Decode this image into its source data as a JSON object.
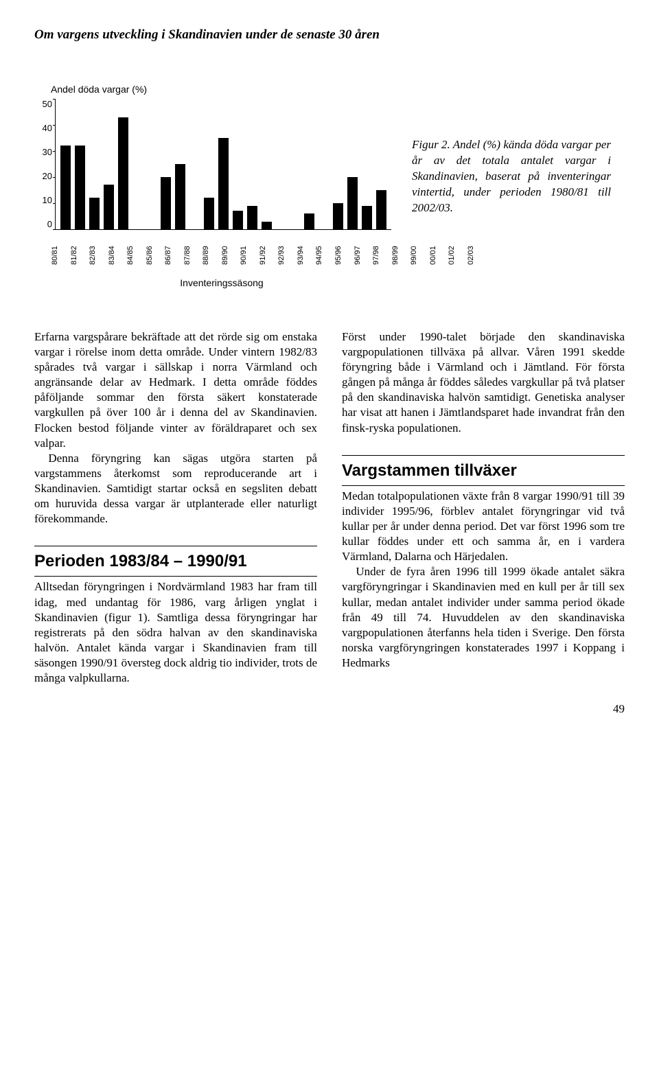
{
  "page_title": "Om vargens utveckling i Skandinavien under de senaste 30 åren",
  "chart": {
    "type": "bar",
    "y_title": "Andel döda vargar (%)",
    "x_title": "Inventeringssäsong",
    "ylim": [
      0,
      50
    ],
    "ytick_step": 10,
    "yticks": [
      "50",
      "40",
      "30",
      "20",
      "10",
      "0"
    ],
    "bar_color": "#000000",
    "background_color": "#ffffff",
    "axis_color": "#000000",
    "label_font": "Arial",
    "label_fontsize_pt": 11,
    "title_fontsize_pt": 14,
    "bar_width_rel": 0.55,
    "categories": [
      "80/81",
      "81/82",
      "82/83",
      "83/84",
      "84/85",
      "85/86",
      "86/87",
      "87/88",
      "88/89",
      "89/90",
      "90/91",
      "91/92",
      "92/93",
      "93/94",
      "94/95",
      "95/96",
      "96/97",
      "97/98",
      "98/99",
      "99/00",
      "00/01",
      "01/02",
      "02/03"
    ],
    "values": [
      32,
      32,
      12,
      17,
      43,
      0,
      0,
      20,
      25,
      0,
      12,
      35,
      7,
      9,
      3,
      0,
      0,
      6,
      0,
      10,
      20,
      9,
      15
    ]
  },
  "caption": {
    "lead": "Figur 2.",
    "body": " Andel (%) kända döda vargar per år av det totala antalet vargar i Skandinavien, baserat på inventeringar vintertid, under perioden 1980/81 till 2002/03."
  },
  "body": {
    "p1": "Erfarna vargspårare bekräftade att det rörde sig om enstaka vargar i rörelse inom detta område. Under vintern 1982/83 spårades två vargar i sällskap i norra Värmland och angränsande delar av Hedmark. I detta område föddes påföljande sommar den första säkert konstaterade vargkullen på över 100 år i denna del av Skandinavien. Flocken bestod följande vinter av föräldraparet och sex valpar.",
    "p2": "Denna föryngring kan sägas utgöra starten på vargstammens återkomst som reproducerande art i Skandinavien. Samtidigt startar också en segsliten debatt om huruvida dessa vargar är utplanterade eller naturligt förekommande.",
    "h1": "Perioden 1983/84 – 1990/91",
    "p3": "Alltsedan föryngringen i Nordvärmland 1983 har fram till idag, med undantag för 1986, varg årligen ynglat i Skandinavien (figur 1). Samtliga dessa föryngringar har registrerats på den södra halvan av den skandinaviska halvön. Antalet kända vargar i Skandinavien fram till säsongen 1990/91 översteg dock aldrig tio individer, trots de många valpkullarna.",
    "p4": "Först under 1990-talet började den skandinaviska vargpopulationen tillväxa på allvar. Våren 1991 skedde föryngring både i Värmland och i Jämtland. För första gången på många år föddes således vargkullar på två platser på den skandinaviska halvön samtidigt. Genetiska analyser har visat att hanen i Jämtlandsparet hade invandrat från den finsk-ryska populationen.",
    "h2": "Vargstammen tillväxer",
    "p5": "Medan totalpopulationen växte från 8 vargar 1990/91 till 39 individer 1995/96, förblev antalet föryngringar vid två kullar per år under denna period. Det var först 1996 som tre kullar föddes under ett och samma år, en i vardera Värmland, Dalarna och Härjedalen.",
    "p6": "Under de fyra åren 1996 till 1999 ökade antalet säkra vargföryngringar i Skandinavien med en kull per år till sex kullar, medan antalet individer under samma period ökade från 49 till 74. Huvuddelen av den skandinaviska vargpopulationen återfanns hela tiden i Sverige. Den första norska vargföryngringen konstaterades 1997 i Koppang i Hedmarks"
  },
  "page_number": "49",
  "style": {
    "body_font": "Times New Roman",
    "body_fontsize_pt": 13,
    "heading_font": "Arial",
    "heading_fontsize_pt": 22,
    "text_color": "#000000",
    "background_color": "#ffffff"
  }
}
